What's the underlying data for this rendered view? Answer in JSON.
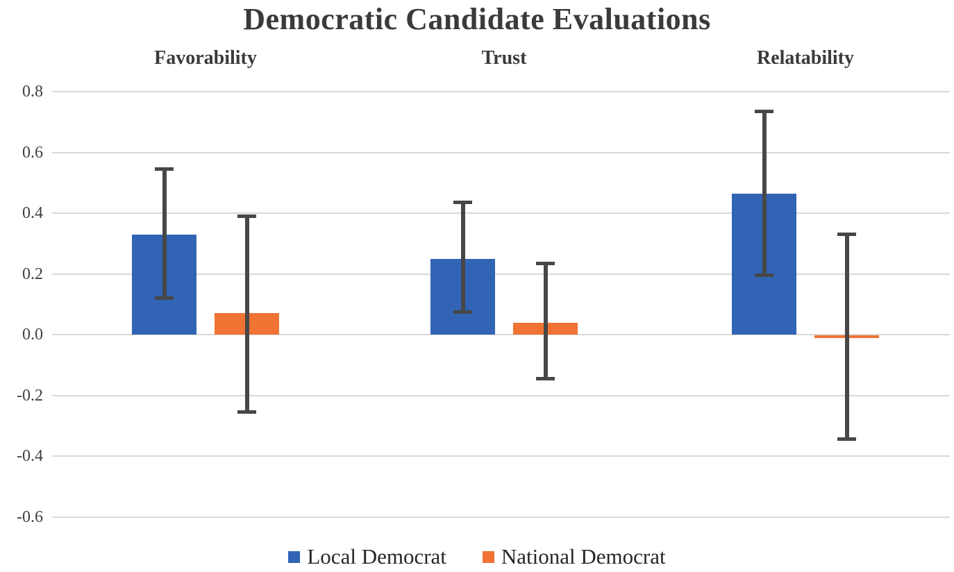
{
  "title": "Democratic Candidate Evaluations",
  "colors": {
    "local": "#3164B5",
    "national": "#F07333",
    "error_bar": "#474747",
    "gridline": "#D9D9D9",
    "text": "#3A3A3A"
  },
  "legend": {
    "items": [
      {
        "label": "Local Democrat",
        "color_key": "local"
      },
      {
        "label": "National Democrat",
        "color_key": "national"
      }
    ]
  },
  "chart_data": {
    "type": "bar",
    "title": "Democratic Candidate Evaluations",
    "categories": [
      "Favorability",
      "Trust",
      "Relatability"
    ],
    "series": [
      {
        "name": "Local Democrat",
        "values": [
          0.33,
          0.25,
          0.465
        ],
        "ci_low": [
          0.12,
          0.075,
          0.195
        ],
        "ci_high": [
          0.545,
          0.435,
          0.735
        ]
      },
      {
        "name": "National Democrat",
        "values": [
          0.07,
          0.04,
          -0.01
        ],
        "ci_low": [
          -0.255,
          -0.145,
          -0.345
        ],
        "ci_high": [
          0.39,
          0.235,
          0.33
        ]
      }
    ],
    "ylabel": "",
    "xlabel": "",
    "ylim": [
      -0.7,
      0.9
    ],
    "yticks": [
      0.8,
      0.6,
      0.4,
      0.2,
      0.0,
      -0.2,
      -0.4,
      -0.6
    ],
    "ytick_labels": [
      "0.8",
      "0.6",
      "0.4",
      "0.2",
      "0.0",
      "-0.2",
      "-0.4",
      "-0.6"
    ],
    "grid": "horizontal",
    "legend_position": "bottom",
    "error_bars": true
  }
}
